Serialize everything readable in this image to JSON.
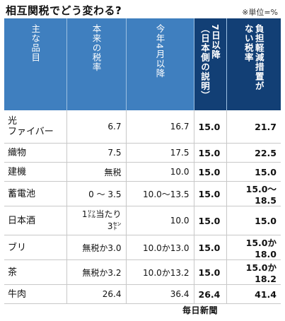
{
  "title": "相互関税でどう変わる?",
  "unit_note": "※単位=%",
  "headers": {
    "item": "主な品目",
    "original": "本来の税率",
    "april": "今年4月以降",
    "from7": "7日以降\n（日本側の説明）",
    "nomitigation": "負担軽減措置が\nない税率"
  },
  "rows": [
    {
      "item": "光\nファイバー",
      "original": "6.7",
      "april": "16.7",
      "from7": "15.0",
      "nomitigation": "21.7"
    },
    {
      "item": "織物",
      "original": "7.5",
      "april": "17.5",
      "from7": "15.0",
      "nomitigation": "22.5"
    },
    {
      "item": "建機",
      "original": "無税",
      "april": "10.0",
      "from7": "15.0",
      "nomitigation": "15.0"
    },
    {
      "item": "蓄電池",
      "original": "0 ～ 3.5",
      "april": "10.0～13.5",
      "from7": "15.0",
      "nomitigation": "15.0～18.5"
    },
    {
      "item": "日本酒",
      "original": "1㍑当たり\n3㌣",
      "april": "10.0",
      "from7": "15.0",
      "nomitigation": "15.0"
    },
    {
      "item": "ブリ",
      "original": "無税か3.0",
      "april": "10.0か13.0",
      "from7": "15.0",
      "nomitigation": "15.0か18.0"
    },
    {
      "item": "茶",
      "original": "無税か3.2",
      "april": "10.0か13.2",
      "from7": "15.0",
      "nomitigation": "15.0か18.2"
    },
    {
      "item": "牛肉",
      "original": "26.4",
      "april": "36.4",
      "from7": "26.4",
      "nomitigation": "41.4"
    }
  ],
  "source": "毎日新聞",
  "colors": {
    "header": "#3f7fbf",
    "header_dark": "#123f75"
  }
}
